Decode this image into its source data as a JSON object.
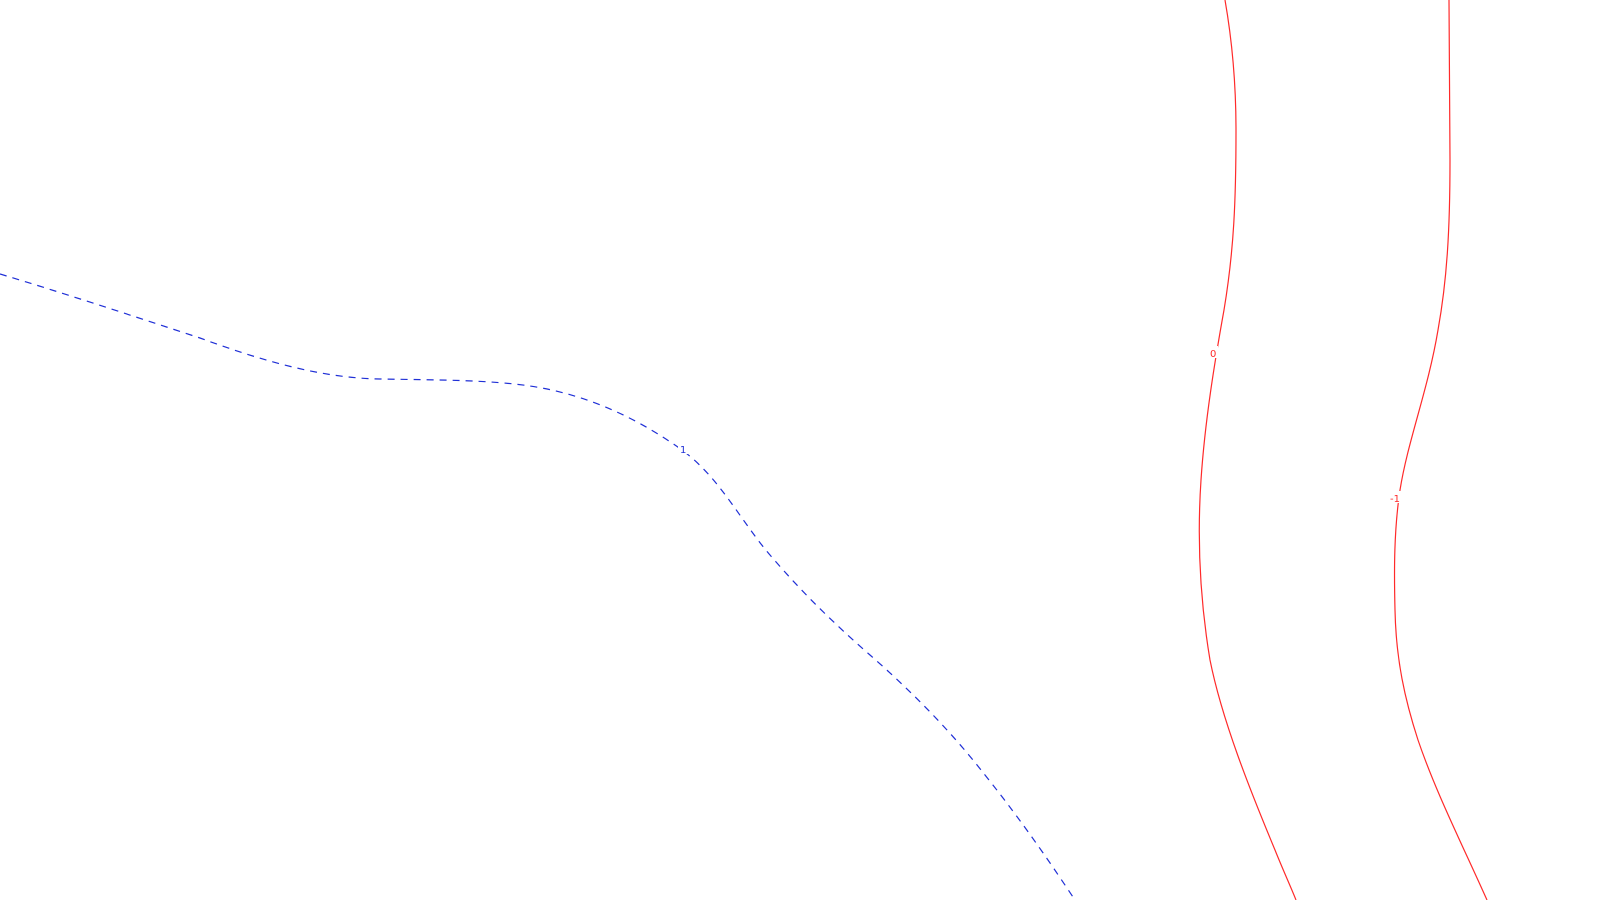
{
  "map": {
    "contours": [
      {
        "label": "1",
        "color": "#1f2fd6",
        "style": "dashed"
      },
      {
        "label": "0",
        "color": "#ff2a2a",
        "style": "solid"
      },
      {
        "label": "-1",
        "color": "#ff2a2a",
        "style": "solid"
      }
    ]
  }
}
